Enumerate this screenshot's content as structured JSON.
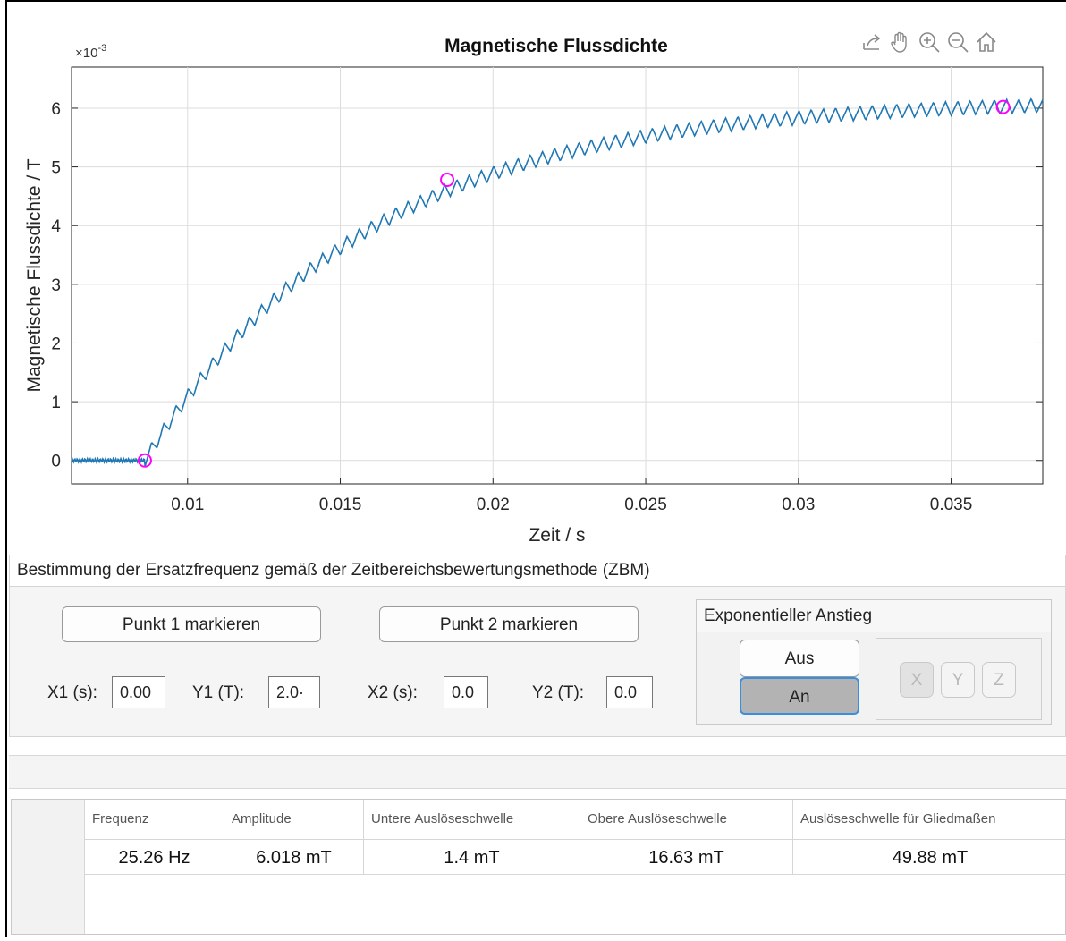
{
  "chart_data": {
    "type": "line",
    "title": "Magnetische Flussdichte",
    "xlabel": "Zeit / s",
    "ylabel": "Magnetische Flussdichte / T",
    "exponent_label": "×10",
    "exponent_power": "-3",
    "xlim": [
      0.0062,
      0.038
    ],
    "ylim": [
      -0.0004,
      0.0067
    ],
    "xticks": [
      0.01,
      0.015,
      0.02,
      0.025,
      0.03,
      0.035
    ],
    "xtick_labels": [
      "0.01",
      "0.015",
      "0.02",
      "0.025",
      "0.03",
      "0.035"
    ],
    "yticks": [
      0,
      0.001,
      0.002,
      0.003,
      0.004,
      0.005,
      0.006
    ],
    "ytick_labels": [
      "0",
      "1",
      "2",
      "3",
      "4",
      "5",
      "6"
    ],
    "grid": true,
    "series": [
      {
        "model": "exponential-rise",
        "t_start": 0.0086,
        "t_end": 0.038,
        "y_final": 0.00615,
        "tau": 0.0072,
        "ripple_period": 0.0004,
        "ripple_amplitude": 0.00012,
        "baseline_until": 0.0086,
        "color": "#1f77b4"
      }
    ],
    "markers": [
      {
        "x": 0.0086,
        "y": 0.0,
        "color": "#ff00ff"
      },
      {
        "x": 0.0185,
        "y": 0.00478,
        "color": "#ff00ff"
      },
      {
        "x": 0.0367,
        "y": 0.00602,
        "color": "#ff00ff"
      }
    ]
  },
  "toolbar": {
    "icons": [
      "export-icon",
      "pan-icon",
      "zoom-in-icon",
      "zoom-out-icon",
      "home-icon"
    ]
  },
  "panel": {
    "title": "Bestimmung der Ersatzfrequenz gemäß der Zeitbereichsbewertungsmethode (ZBM)",
    "point1_button": "Punkt 1 markieren",
    "point2_button": "Punkt 2 markieren",
    "x1_label": "X1 (s):",
    "x1_value": "0.00",
    "y1_label": "Y1 (T):",
    "y1_value": "2.0·",
    "x2_label": "X2 (s):",
    "x2_value": "0.0",
    "y2_label": "Y2 (T):",
    "y2_value": "0.0",
    "exp_title": "Exponentieller Anstieg",
    "off_button": "Aus",
    "on_button": "An",
    "axis_buttons": [
      "X",
      "Y",
      "Z"
    ]
  },
  "table": {
    "headers": [
      "Frequenz",
      "Amplitude",
      "Untere Auslöseschwelle",
      "Obere Auslöseschwelle",
      "Auslöseschwelle für Gliedmaßen"
    ],
    "row": [
      "25.26 Hz",
      "6.018 mT",
      "1.4 mT",
      "16.63 mT",
      "49.88 mT"
    ]
  }
}
